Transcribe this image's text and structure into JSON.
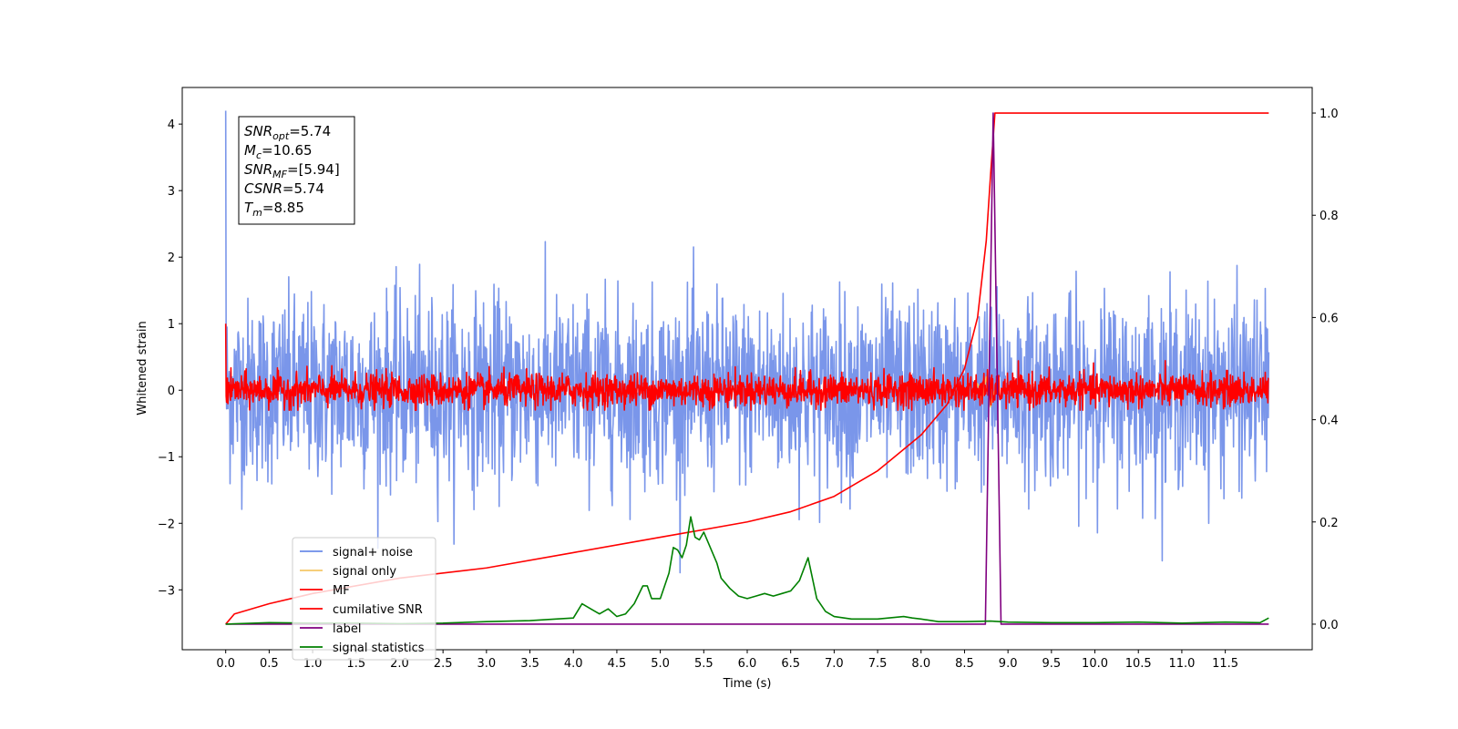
{
  "chart_data": {
    "type": "line",
    "title": "",
    "xlabel": "Time (s)",
    "ylabel": "Whitened strain",
    "y2label": "",
    "xlim": [
      -0.5,
      12.5
    ],
    "ylim": [
      -3.9,
      4.55
    ],
    "y2lim": [
      -0.05,
      1.05
    ],
    "x_ticks": [
      0.0,
      0.5,
      1.0,
      1.5,
      2.0,
      2.5,
      3.0,
      3.5,
      4.0,
      4.5,
      5.0,
      5.5,
      6.0,
      6.5,
      7.0,
      7.5,
      8.0,
      8.5,
      9.0,
      9.5,
      10.0,
      10.5,
      11.0,
      11.5
    ],
    "x_tick_labels": [
      "0.0",
      "0.5",
      "1.0",
      "1.5",
      "2.0",
      "2.5",
      "3.0",
      "3.5",
      "4.0",
      "4.5",
      "5.0",
      "5.5",
      "6.0",
      "6.5",
      "7.0",
      "7.5",
      "8.0",
      "8.5",
      "9.0",
      "9.5",
      "10.0",
      "10.5",
      "11.0",
      "11.5"
    ],
    "y_ticks": [
      -3,
      -2,
      -1,
      0,
      1,
      2,
      3,
      4
    ],
    "y_tick_labels": [
      "−3",
      "−2",
      "−1",
      "0",
      "1",
      "2",
      "3",
      "4"
    ],
    "y2_ticks": [
      0.0,
      0.2,
      0.4,
      0.6,
      0.8,
      1.0
    ],
    "y2_tick_labels": [
      "0.0",
      "0.2",
      "0.4",
      "0.6",
      "0.8",
      "1.0"
    ],
    "grid": false,
    "legend_position": "lower-left",
    "series": [
      {
        "name": "signal+ noise",
        "axis": "left",
        "color": "#6b8be8",
        "kind": "noise",
        "x_range": [
          0.0,
          12.0
        ],
        "center": 0.0,
        "typical_amplitude": 1.1,
        "peak_range": [
          -3.5,
          4.2
        ]
      },
      {
        "name": "signal only",
        "axis": "left",
        "color": "#f5c767",
        "kind": "chirp",
        "x": [
          8.6,
          8.65,
          8.7,
          8.75,
          8.8,
          8.85
        ],
        "y": [
          -0.05,
          0.1,
          -0.15,
          0.2,
          -0.25,
          0.0
        ]
      },
      {
        "name": "MF",
        "axis": "left",
        "color": "#ff0000",
        "kind": "noise",
        "x_range": [
          0.0,
          12.0
        ],
        "center": 0.0,
        "typical_amplitude": 0.2,
        "peak_range": [
          -0.3,
          1.0
        ]
      },
      {
        "name": "cumilative SNR",
        "axis": "right",
        "color": "#ff0000",
        "x": [
          0.0,
          0.1,
          0.5,
          1.0,
          2.0,
          3.0,
          4.0,
          5.0,
          6.0,
          6.5,
          7.0,
          7.5,
          8.0,
          8.3,
          8.5,
          8.65,
          8.75,
          8.8,
          8.85,
          8.9,
          9.5,
          10.0,
          11.0,
          12.0
        ],
        "y": [
          0.0,
          0.02,
          0.04,
          0.06,
          0.09,
          0.11,
          0.14,
          0.17,
          0.2,
          0.22,
          0.25,
          0.3,
          0.37,
          0.43,
          0.5,
          0.6,
          0.75,
          0.88,
          1.0,
          1.0,
          1.0,
          1.0,
          1.0,
          1.0
        ]
      },
      {
        "name": "label",
        "axis": "right",
        "color": "#800080",
        "x": [
          0.0,
          8.74,
          8.83,
          8.92,
          12.0
        ],
        "y": [
          0.0,
          0.0,
          1.0,
          0.0,
          0.0
        ]
      },
      {
        "name": "signal statistics",
        "axis": "right",
        "color": "#008000",
        "x": [
          0.0,
          0.5,
          1.0,
          1.5,
          2.0,
          2.5,
          3.0,
          3.5,
          3.8,
          4.0,
          4.1,
          4.2,
          4.3,
          4.4,
          4.5,
          4.6,
          4.7,
          4.8,
          4.85,
          4.9,
          5.0,
          5.1,
          5.15,
          5.2,
          5.25,
          5.3,
          5.35,
          5.4,
          5.45,
          5.5,
          5.55,
          5.6,
          5.65,
          5.7,
          5.75,
          5.8,
          5.9,
          6.0,
          6.1,
          6.2,
          6.3,
          6.4,
          6.5,
          6.6,
          6.7,
          6.8,
          6.9,
          7.0,
          7.2,
          7.5,
          7.8,
          7.9,
          8.0,
          8.2,
          8.5,
          8.8,
          9.0,
          9.5,
          10.0,
          10.5,
          11.0,
          11.5,
          11.9,
          12.0
        ],
        "y": [
          0.0,
          0.003,
          0.002,
          0.002,
          0.001,
          0.002,
          0.005,
          0.007,
          0.01,
          0.012,
          0.04,
          0.03,
          0.02,
          0.03,
          0.015,
          0.02,
          0.04,
          0.075,
          0.075,
          0.05,
          0.05,
          0.1,
          0.15,
          0.145,
          0.13,
          0.155,
          0.21,
          0.17,
          0.165,
          0.18,
          0.16,
          0.14,
          0.12,
          0.09,
          0.08,
          0.07,
          0.055,
          0.05,
          0.055,
          0.06,
          0.055,
          0.06,
          0.065,
          0.085,
          0.13,
          0.05,
          0.025,
          0.015,
          0.01,
          0.01,
          0.015,
          0.012,
          0.01,
          0.005,
          0.005,
          0.006,
          0.004,
          0.003,
          0.003,
          0.004,
          0.002,
          0.004,
          0.003,
          0.012
        ]
      }
    ],
    "annotation": [
      {
        "sym": "SNR",
        "sub": "opt",
        "value": "=5.74"
      },
      {
        "sym": "M",
        "sub": "c",
        "value": "=10.65"
      },
      {
        "sym": "SNR",
        "sub": "MF",
        "value": "=[5.94]"
      },
      {
        "sym": "CSNR",
        "sub": "",
        "value": "=5.74"
      },
      {
        "sym": "T",
        "sub": "m",
        "value": "=8.85"
      }
    ]
  }
}
